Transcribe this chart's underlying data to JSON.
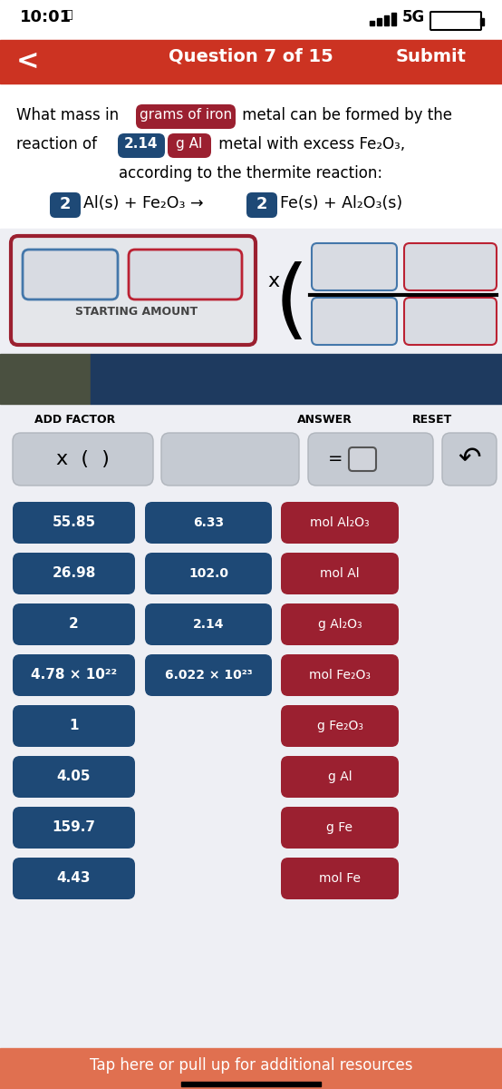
{
  "bg_color": "#eeeff4",
  "white_bg": "#ffffff",
  "header_color": "#cc3322",
  "button_blue": "#1e4976",
  "button_red": "#9b2030",
  "button_gray": "#c5cad2",
  "border_blue": "#4477aa",
  "border_red": "#bb2233",
  "sep_blue": "#1e3a5f",
  "sep_olive": "#4a5040",
  "footer_color": "#e07050",
  "time_text": "10:01",
  "nav_title": "Question 7 of 15",
  "nav_submit": "Submit",
  "starting_amount_label": "STARTING AMOUNT",
  "add_factor_label": "ADD FACTOR",
  "answer_label": "ANSWER",
  "reset_label": "RESET",
  "left_col_values": [
    "55.85",
    "26.98",
    "2",
    "4.78 × 10²²",
    "1",
    "4.05",
    "159.7",
    "4.43"
  ],
  "mid_col_values": [
    "6.33",
    "102.0",
    "2.14",
    "6.022 × 10²³",
    "",
    "",
    "",
    ""
  ],
  "right_col_values": [
    "mol Al₂O₃",
    "mol Al",
    "g Al₂O₃",
    "mol Fe₂O₃",
    "g Fe₂O₃",
    "g Al",
    "g Fe",
    "mol Fe"
  ],
  "footer_text": "Tap here or pull up for additional resources"
}
